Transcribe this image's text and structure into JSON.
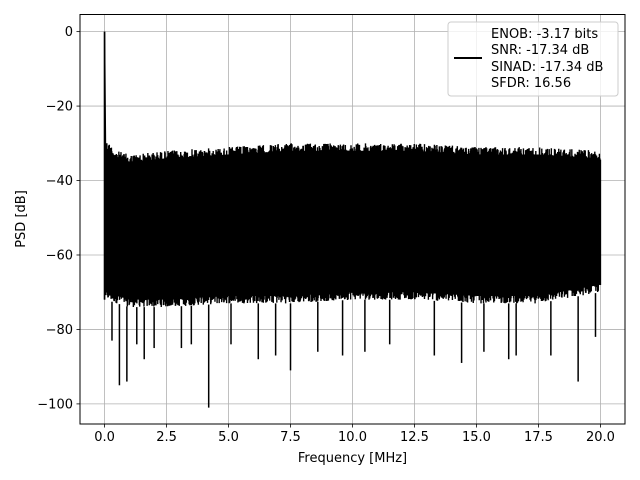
{
  "chart_data": {
    "type": "line",
    "title": "",
    "xlabel": "Frequency [MHz]",
    "ylabel": "PSD [dB]",
    "xlim": [
      -0.99,
      20.99
    ],
    "ylim": [
      -105.4,
      4.6
    ],
    "x_ticks": [
      0.0,
      2.5,
      5.0,
      7.5,
      10.0,
      12.5,
      15.0,
      17.5,
      20.0
    ],
    "x_tick_labels": [
      "0.0",
      "2.5",
      "5.0",
      "7.5",
      "10.0",
      "12.5",
      "15.0",
      "17.5",
      "20.0"
    ],
    "y_ticks": [
      0,
      -20,
      -40,
      -60,
      -80,
      -100
    ],
    "y_tick_labels": [
      "0",
      "−20",
      "−40",
      "−60",
      "−80",
      "−100"
    ],
    "grid": true,
    "legend_position": "top-right",
    "legend_entries": [
      "ENOB: -3.17 bits",
      "SNR: -17.34 dB",
      "SINAD: -17.34 dB",
      "SFDR: 16.56"
    ],
    "series": [
      {
        "color": "#000000",
        "peak": [
          0.0,
          0.0
        ],
        "band_x_range": [
          0.05,
          20.0
        ],
        "upper_envelope_x": [
          0.05,
          0.5,
          1.0,
          2.5,
          5.0,
          7.5,
          10.0,
          12.5,
          15.0,
          17.5,
          20.0
        ],
        "upper_envelope_y": [
          -29,
          -32,
          -33,
          -32,
          -31,
          -30,
          -30,
          -30,
          -31,
          -31,
          -32
        ],
        "lower_envelope_x": [
          0.05,
          0.5,
          1.0,
          2.5,
          5.0,
          7.5,
          10.0,
          12.5,
          15.0,
          17.5,
          20.0
        ],
        "lower_envelope_y": [
          -72,
          -73,
          -74,
          -74,
          -73,
          -73,
          -72,
          -72,
          -73,
          -73,
          -70
        ],
        "dips": [
          [
            0.3,
            -83
          ],
          [
            0.6,
            -95
          ],
          [
            0.9,
            -94
          ],
          [
            1.3,
            -84
          ],
          [
            1.6,
            -88
          ],
          [
            2.0,
            -85
          ],
          [
            3.1,
            -85
          ],
          [
            3.5,
            -84
          ],
          [
            4.2,
            -101
          ],
          [
            5.1,
            -84
          ],
          [
            6.2,
            -88
          ],
          [
            6.9,
            -87
          ],
          [
            7.5,
            -91
          ],
          [
            8.6,
            -86
          ],
          [
            9.6,
            -87
          ],
          [
            10.5,
            -86
          ],
          [
            11.5,
            -84
          ],
          [
            13.3,
            -87
          ],
          [
            14.4,
            -89
          ],
          [
            15.3,
            -86
          ],
          [
            16.3,
            -88
          ],
          [
            16.6,
            -87
          ],
          [
            18.0,
            -87
          ],
          [
            19.1,
            -94
          ],
          [
            19.8,
            -82
          ]
        ]
      }
    ]
  }
}
